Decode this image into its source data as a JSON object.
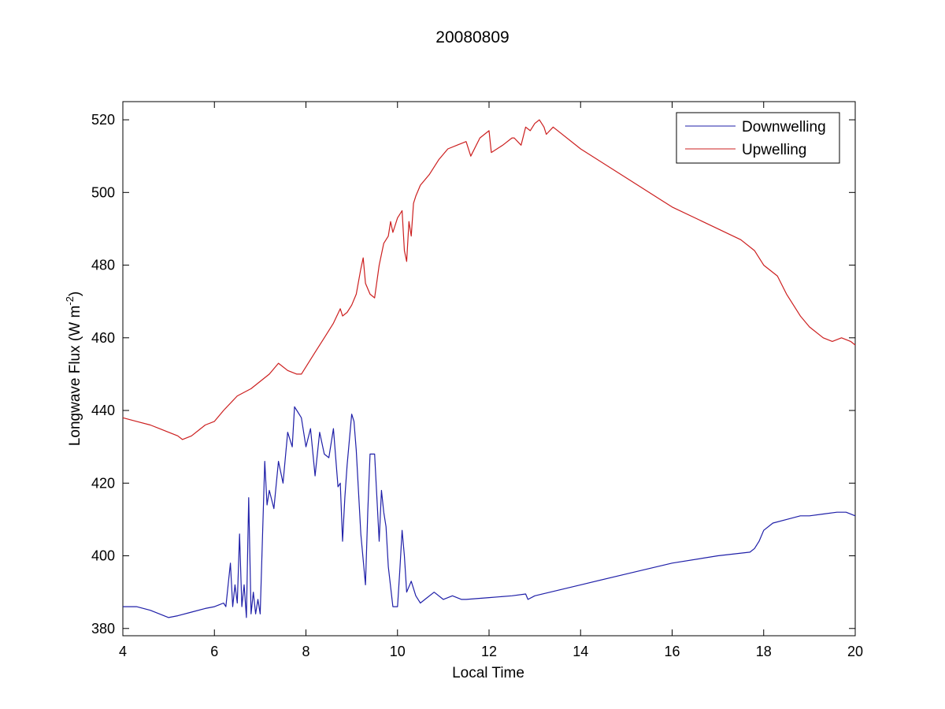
{
  "chart_data": {
    "type": "line",
    "title": "20080809",
    "xlabel": "Local Time",
    "ylabel": {
      "prefix": "Longwave Flux (W m",
      "superscript": "-2",
      "suffix": ")"
    },
    "xlim": [
      4,
      20
    ],
    "ylim": [
      378,
      525
    ],
    "xticks": [
      4,
      6,
      8,
      10,
      12,
      14,
      16,
      18,
      20
    ],
    "yticks": [
      380,
      400,
      420,
      440,
      460,
      480,
      500,
      520
    ],
    "grid": false,
    "legend_position": "top-right",
    "series": [
      {
        "name": "Downwelling",
        "color": "#1f1fa8",
        "x": [
          4.0,
          4.3,
          4.6,
          4.8,
          5.0,
          5.2,
          5.5,
          5.8,
          6.0,
          6.1,
          6.2,
          6.25,
          6.3,
          6.35,
          6.4,
          6.45,
          6.5,
          6.55,
          6.6,
          6.65,
          6.7,
          6.75,
          6.8,
          6.85,
          6.9,
          6.95,
          7.0,
          7.05,
          7.1,
          7.15,
          7.2,
          7.3,
          7.4,
          7.5,
          7.6,
          7.7,
          7.75,
          7.8,
          7.9,
          8.0,
          8.1,
          8.2,
          8.3,
          8.4,
          8.5,
          8.6,
          8.7,
          8.75,
          8.8,
          8.85,
          8.9,
          9.0,
          9.05,
          9.1,
          9.2,
          9.3,
          9.35,
          9.4,
          9.5,
          9.6,
          9.65,
          9.7,
          9.75,
          9.8,
          9.9,
          10.0,
          10.05,
          10.1,
          10.15,
          10.2,
          10.3,
          10.4,
          10.5,
          10.6,
          10.8,
          11.0,
          11.2,
          11.4,
          11.5,
          12.0,
          12.5,
          12.8,
          12.85,
          13.0,
          14.0,
          15.0,
          16.0,
          17.0,
          17.7,
          17.8,
          17.9,
          18.0,
          18.2,
          18.5,
          18.8,
          19.0,
          19.3,
          19.6,
          19.8,
          20.0
        ],
        "values": [
          386,
          386,
          385,
          384,
          383,
          383.5,
          384.5,
          385.5,
          386,
          386.5,
          387,
          386,
          392,
          398,
          386,
          392,
          387,
          406,
          386,
          392,
          383,
          416,
          384,
          390,
          384,
          388,
          384,
          405,
          426,
          414,
          418,
          413,
          426,
          420,
          434,
          430,
          441,
          440,
          438,
          430,
          435,
          422,
          434,
          428,
          427,
          435,
          419,
          420,
          404,
          416,
          425,
          439,
          437,
          429,
          406,
          392,
          412,
          428,
          428,
          404,
          418,
          412,
          408,
          397,
          386,
          386,
          396,
          407,
          400,
          390,
          393,
          389,
          387,
          388,
          390,
          388,
          389,
          388,
          388,
          388.5,
          389,
          389.5,
          388,
          389,
          392,
          395,
          398,
          400,
          401,
          402,
          404,
          407,
          409,
          410,
          411,
          411,
          411.5,
          412,
          412,
          411
        ]
      },
      {
        "name": "Upwelling",
        "color": "#cc1f1f",
        "x": [
          4.0,
          4.3,
          4.6,
          4.8,
          5.0,
          5.2,
          5.3,
          5.5,
          5.8,
          6.0,
          6.2,
          6.5,
          6.8,
          7.0,
          7.2,
          7.4,
          7.6,
          7.8,
          7.9,
          8.0,
          8.2,
          8.4,
          8.6,
          8.75,
          8.8,
          8.9,
          9.0,
          9.1,
          9.2,
          9.25,
          9.3,
          9.4,
          9.5,
          9.6,
          9.7,
          9.8,
          9.85,
          9.9,
          10.0,
          10.1,
          10.15,
          10.2,
          10.25,
          10.3,
          10.35,
          10.4,
          10.5,
          10.7,
          10.9,
          11.1,
          11.3,
          11.5,
          11.6,
          11.8,
          12.0,
          12.05,
          12.3,
          12.5,
          12.55,
          12.7,
          12.8,
          12.9,
          13.0,
          13.1,
          13.2,
          13.25,
          13.4,
          14.0,
          15.0,
          16.0,
          17.0,
          17.5,
          17.8,
          18.0,
          18.3,
          18.5,
          18.8,
          19.0,
          19.3,
          19.5,
          19.7,
          19.9,
          20.0
        ],
        "values": [
          438,
          437,
          436,
          435,
          434,
          433,
          432,
          433,
          436,
          437,
          440,
          444,
          446,
          448,
          450,
          453,
          451,
          450,
          450,
          452,
          456,
          460,
          464,
          468,
          466,
          467,
          469,
          472,
          479,
          482,
          475,
          472,
          471,
          480,
          486,
          488,
          492,
          489,
          493,
          495,
          484,
          481,
          492,
          488,
          497,
          499,
          502,
          505,
          509,
          512,
          513,
          514,
          510,
          515,
          517,
          511,
          513,
          515,
          515,
          513,
          518,
          517,
          519,
          520,
          518,
          516,
          518,
          512,
          504,
          496,
          490,
          487,
          484,
          480,
          477,
          472,
          466,
          463,
          460,
          459,
          460,
          459,
          458
        ]
      }
    ]
  }
}
